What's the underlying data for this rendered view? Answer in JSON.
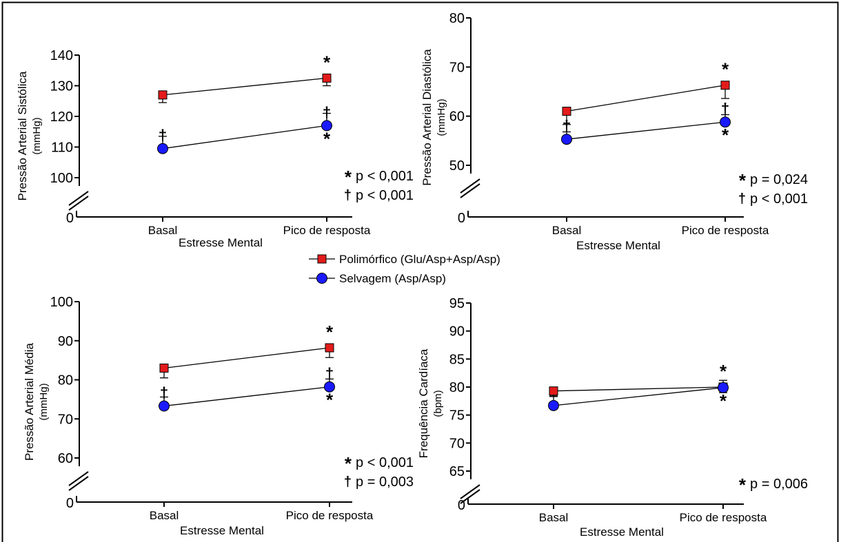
{
  "legend": {
    "items": [
      {
        "label": "Polimórfico (Glu/Asp+Asp/Asp)",
        "marker": "square",
        "color": "#e31b1b"
      },
      {
        "label": "Selvagem (Asp/Asp)",
        "marker": "circle",
        "color": "#1a1aff"
      }
    ]
  },
  "chart_data": [
    {
      "type": "line",
      "ylabel": "Pressão Arterial Sistólica",
      "yunit": "(mmHg)",
      "xlabel": "Estresse Mental",
      "categories": [
        "Basal",
        "Pico de resposta"
      ],
      "ylim": [
        100,
        140
      ],
      "yticks": [
        100,
        110,
        120,
        130,
        140
      ],
      "axis_break": true,
      "axis_zero_label": "0",
      "series": [
        {
          "name": "Polimórfico (Glu/Asp+Asp/Asp)",
          "values": [
            127,
            132.5
          ],
          "errors": [
            2.5,
            2.5
          ],
          "marker": "square",
          "color": "#e31b1b"
        },
        {
          "name": "Selvagem (Asp/Asp)",
          "values": [
            109.5,
            117
          ],
          "errors": [
            4,
            4
          ],
          "marker": "circle",
          "color": "#1a1aff"
        }
      ],
      "marks": [
        {
          "series": 0,
          "point": 1,
          "text": "*",
          "pos": "above"
        },
        {
          "series": 1,
          "point": 0,
          "text": "†",
          "pos": "above"
        },
        {
          "series": 1,
          "point": 1,
          "text": "†",
          "pos": "above"
        },
        {
          "series": 1,
          "point": 1,
          "text": "*",
          "pos": "below"
        }
      ],
      "annotations": [
        {
          "symbol": "*",
          "text": "p < 0,001"
        },
        {
          "symbol": "†",
          "text": "p < 0,001"
        }
      ]
    },
    {
      "type": "line",
      "ylabel": "Pressão Arterial Diastólica",
      "yunit": "(mmHg)",
      "xlabel": "Estresse Mental",
      "categories": [
        "Basal",
        "Pico de resposta"
      ],
      "ylim": [
        50,
        80
      ],
      "yticks": [
        50,
        60,
        70,
        80
      ],
      "axis_break": true,
      "axis_zero_label": "0",
      "series": [
        {
          "name": "Polimórfico (Glu/Asp+Asp/Asp)",
          "values": [
            61,
            66.3
          ],
          "errors": [
            2.7,
            2.7
          ],
          "marker": "square",
          "color": "#e31b1b"
        },
        {
          "name": "Selvagem (Asp/Asp)",
          "values": [
            55.3,
            58.8
          ],
          "errors": [
            1.5,
            1.5
          ],
          "marker": "circle",
          "color": "#1a1aff"
        }
      ],
      "marks": [
        {
          "series": 0,
          "point": 1,
          "text": "*",
          "pos": "above"
        },
        {
          "series": 1,
          "point": 0,
          "text": "†",
          "pos": "above"
        },
        {
          "series": 1,
          "point": 1,
          "text": "†",
          "pos": "above"
        },
        {
          "series": 1,
          "point": 1,
          "text": "*",
          "pos": "below"
        }
      ],
      "annotations": [
        {
          "symbol": "*",
          "text": "p = 0,024"
        },
        {
          "symbol": "†",
          "text": "p < 0,001"
        }
      ]
    },
    {
      "type": "line",
      "ylabel": "Pressão Arterial Média",
      "yunit": "(mmHg)",
      "xlabel": "Estresse Mental",
      "categories": [
        "Basal",
        "Pico de resposta"
      ],
      "ylim": [
        60,
        100
      ],
      "yticks": [
        60,
        70,
        80,
        90,
        100
      ],
      "axis_break": true,
      "axis_zero_label": "0",
      "series": [
        {
          "name": "Polimórfico (Glu/Asp+Asp/Asp)",
          "values": [
            83,
            88.2
          ],
          "errors": [
            2.5,
            2.5
          ],
          "marker": "square",
          "color": "#e31b1b"
        },
        {
          "name": "Selvagem (Asp/Asp)",
          "values": [
            73.3,
            78.2
          ],
          "errors": [
            2.3,
            2
          ],
          "marker": "circle",
          "color": "#1a1aff"
        }
      ],
      "marks": [
        {
          "series": 0,
          "point": 1,
          "text": "*",
          "pos": "above"
        },
        {
          "series": 1,
          "point": 0,
          "text": "†",
          "pos": "above"
        },
        {
          "series": 1,
          "point": 1,
          "text": "†",
          "pos": "above"
        },
        {
          "series": 1,
          "point": 1,
          "text": "*",
          "pos": "below"
        }
      ],
      "annotations": [
        {
          "symbol": "*",
          "text": "p < 0,001"
        },
        {
          "symbol": "†",
          "text": "p = 0,003"
        }
      ]
    },
    {
      "type": "line",
      "ylabel": "Frequência Cardíaca",
      "yunit": "(bpm)",
      "xlabel": "Estresse Mental",
      "categories": [
        "Basal",
        "Pico de resposta"
      ],
      "ylim": [
        65,
        95
      ],
      "yticks": [
        65,
        70,
        75,
        80,
        85,
        90,
        95
      ],
      "axis_break": true,
      "axis_zero_label": "0",
      "series": [
        {
          "name": "Polimórfico (Glu/Asp+Asp/Asp)",
          "values": [
            79.3,
            80
          ],
          "errors": [
            1,
            1
          ],
          "marker": "square",
          "color": "#e31b1b"
        },
        {
          "name": "Selvagem (Asp/Asp)",
          "values": [
            76.7,
            79.9
          ],
          "errors": [
            1.7,
            1.3
          ],
          "marker": "circle",
          "color": "#1a1aff"
        }
      ],
      "marks": [
        {
          "series": 0,
          "point": 1,
          "text": "*",
          "pos": "above"
        },
        {
          "series": 1,
          "point": 1,
          "text": "*",
          "pos": "below"
        }
      ],
      "annotations": [
        {
          "symbol": "*",
          "text": "p = 0,006"
        }
      ]
    }
  ]
}
